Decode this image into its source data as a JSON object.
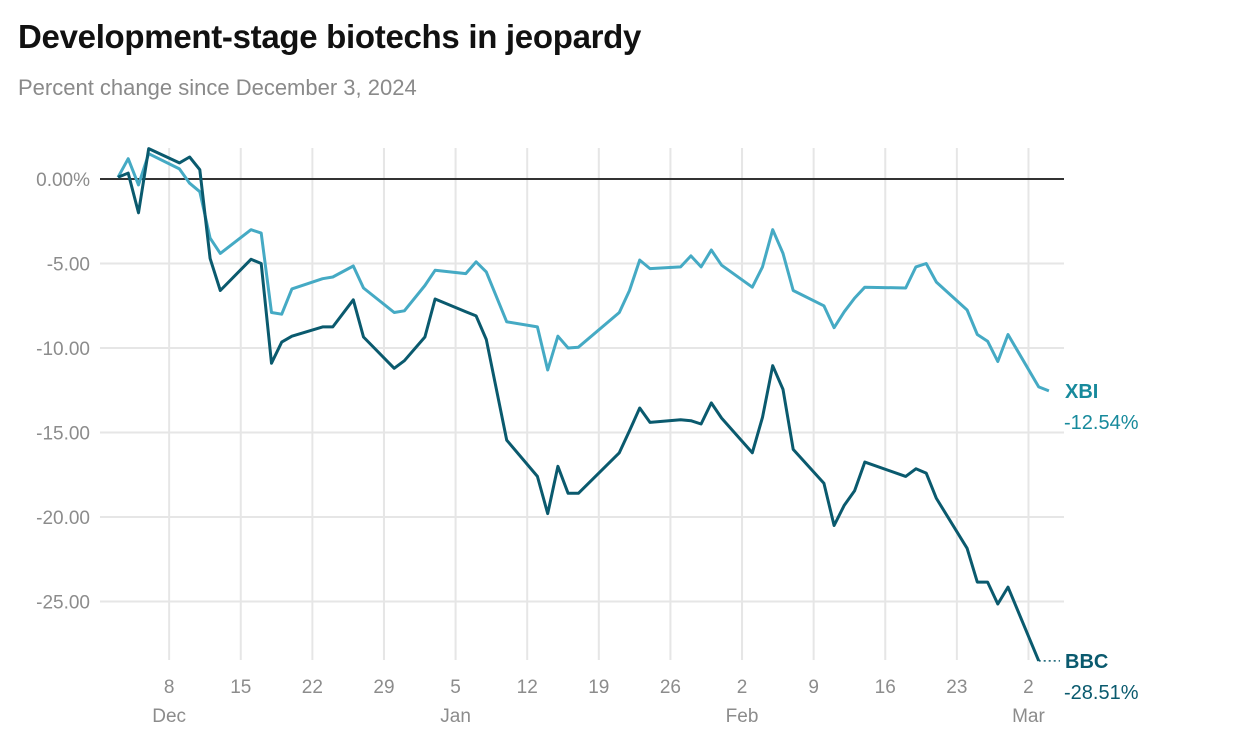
{
  "chart_data": {
    "type": "line",
    "title": "Development-stage biotechs in jeopardy",
    "subtitle": "Percent change since December 3, 2024",
    "xlabel": "",
    "ylabel": "",
    "ylim": [
      -28.6,
      2
    ],
    "xlim": [
      "2024-12-03",
      "2025-03-04"
    ],
    "grid": true,
    "legend": "direct labels at line ends (right)",
    "y_ticks": [
      {
        "value": 0,
        "label": "0.00%"
      },
      {
        "value": -5,
        "label": "-5.00"
      },
      {
        "value": -10,
        "label": "-10.00"
      },
      {
        "value": -15,
        "label": "-15.00"
      },
      {
        "value": -20,
        "label": "-20.00"
      },
      {
        "value": -25,
        "label": "-25.00"
      }
    ],
    "x_ticks": [
      {
        "date": "2024-12-08",
        "label": "8",
        "month": "Dec"
      },
      {
        "date": "2024-12-15",
        "label": "15"
      },
      {
        "date": "2024-12-22",
        "label": "22"
      },
      {
        "date": "2024-12-29",
        "label": "29"
      },
      {
        "date": "2025-01-05",
        "label": "5",
        "month": "Jan"
      },
      {
        "date": "2025-01-12",
        "label": "12"
      },
      {
        "date": "2025-01-19",
        "label": "19"
      },
      {
        "date": "2025-01-26",
        "label": "26"
      },
      {
        "date": "2025-02-02",
        "label": "2",
        "month": "Feb"
      },
      {
        "date": "2025-02-09",
        "label": "9"
      },
      {
        "date": "2025-02-16",
        "label": "16"
      },
      {
        "date": "2025-02-23",
        "label": "23"
      },
      {
        "date": "2025-03-02",
        "label": "2",
        "month": "Mar"
      }
    ],
    "series": [
      {
        "name": "XBI",
        "end_label": "-12.54%",
        "color": "#45aac4",
        "label_color": "#178a9c",
        "x": [
          "2024-12-03",
          "2024-12-04",
          "2024-12-05",
          "2024-12-06",
          "2024-12-09",
          "2024-12-10",
          "2024-12-11",
          "2024-12-12",
          "2024-12-13",
          "2024-12-16",
          "2024-12-17",
          "2024-12-18",
          "2024-12-19",
          "2024-12-20",
          "2024-12-23",
          "2024-12-24",
          "2024-12-26",
          "2024-12-27",
          "2024-12-30",
          "2024-12-31",
          "2025-01-02",
          "2025-01-03",
          "2025-01-06",
          "2025-01-07",
          "2025-01-08",
          "2025-01-10",
          "2025-01-13",
          "2025-01-14",
          "2025-01-15",
          "2025-01-16",
          "2025-01-17",
          "2025-01-21",
          "2025-01-22",
          "2025-01-23",
          "2025-01-24",
          "2025-01-27",
          "2025-01-28",
          "2025-01-29",
          "2025-01-30",
          "2025-01-31",
          "2025-02-03",
          "2025-02-04",
          "2025-02-05",
          "2025-02-06",
          "2025-02-07",
          "2025-02-10",
          "2025-02-11",
          "2025-02-12",
          "2025-02-13",
          "2025-02-14",
          "2025-02-18",
          "2025-02-19",
          "2025-02-20",
          "2025-02-21",
          "2025-02-24",
          "2025-02-25",
          "2025-02-26",
          "2025-02-27",
          "2025-02-28",
          "2025-03-03",
          "2025-03-04"
        ],
        "values": [
          0.1,
          1.2,
          -0.35,
          1.5,
          0.6,
          -0.25,
          -0.75,
          -3.5,
          -4.4,
          -3.0,
          -3.2,
          -7.9,
          -8.0,
          -6.5,
          -5.9,
          -5.8,
          -5.15,
          -6.45,
          -7.9,
          -7.8,
          -6.3,
          -5.4,
          -5.6,
          -4.9,
          -5.5,
          -8.45,
          -8.75,
          -11.3,
          -9.3,
          -10.0,
          -9.95,
          -7.9,
          -6.6,
          -4.8,
          -5.3,
          -5.2,
          -4.55,
          -5.2,
          -4.2,
          -5.1,
          -6.4,
          -5.2,
          -3.0,
          -4.4,
          -6.6,
          -7.5,
          -8.8,
          -7.85,
          -7.05,
          -6.4,
          -6.45,
          -5.2,
          -5.0,
          -6.1,
          -7.75,
          -9.2,
          -9.6,
          -10.8,
          -9.2,
          -12.3,
          -12.54
        ]
      },
      {
        "name": "BBC",
        "end_label": "-28.51%",
        "color": "#0a5a6e",
        "label_color": "#0a5a6e",
        "x": [
          "2024-12-03",
          "2024-12-04",
          "2024-12-05",
          "2024-12-06",
          "2024-12-09",
          "2024-12-10",
          "2024-12-11",
          "2024-12-12",
          "2024-12-13",
          "2024-12-16",
          "2024-12-17",
          "2024-12-18",
          "2024-12-19",
          "2024-12-20",
          "2024-12-23",
          "2024-12-24",
          "2024-12-26",
          "2024-12-27",
          "2024-12-30",
          "2024-12-31",
          "2025-01-02",
          "2025-01-03",
          "2025-01-06",
          "2025-01-07",
          "2025-01-08",
          "2025-01-10",
          "2025-01-13",
          "2025-01-14",
          "2025-01-15",
          "2025-01-16",
          "2025-01-17",
          "2025-01-21",
          "2025-01-22",
          "2025-01-23",
          "2025-01-24",
          "2025-01-27",
          "2025-01-28",
          "2025-01-29",
          "2025-01-30",
          "2025-01-31",
          "2025-02-03",
          "2025-02-04",
          "2025-02-05",
          "2025-02-06",
          "2025-02-07",
          "2025-02-10",
          "2025-02-11",
          "2025-02-12",
          "2025-02-13",
          "2025-02-14",
          "2025-02-18",
          "2025-02-19",
          "2025-02-20",
          "2025-02-21",
          "2025-02-24",
          "2025-02-25",
          "2025-02-26",
          "2025-02-27",
          "2025-02-28",
          "2025-03-03"
        ],
        "values": [
          0.1,
          0.35,
          -2.0,
          1.8,
          0.95,
          1.3,
          0.55,
          -4.7,
          -6.6,
          -4.75,
          -5.0,
          -10.9,
          -9.65,
          -9.3,
          -8.75,
          -8.75,
          -7.15,
          -9.35,
          -11.2,
          -10.75,
          -9.35,
          -7.1,
          -7.85,
          -8.1,
          -9.5,
          -15.45,
          -17.6,
          -19.8,
          -17.0,
          -18.6,
          -18.6,
          -16.2,
          -14.9,
          -13.55,
          -14.4,
          -14.25,
          -14.3,
          -14.5,
          -13.25,
          -14.15,
          -16.2,
          -14.1,
          -11.05,
          -12.45,
          -16.0,
          -18.0,
          -20.5,
          -19.3,
          -18.45,
          -16.75,
          -17.6,
          -17.15,
          -17.4,
          -18.9,
          -21.85,
          -23.85,
          -23.85,
          -25.15,
          -24.15,
          -28.51
        ]
      }
    ]
  }
}
